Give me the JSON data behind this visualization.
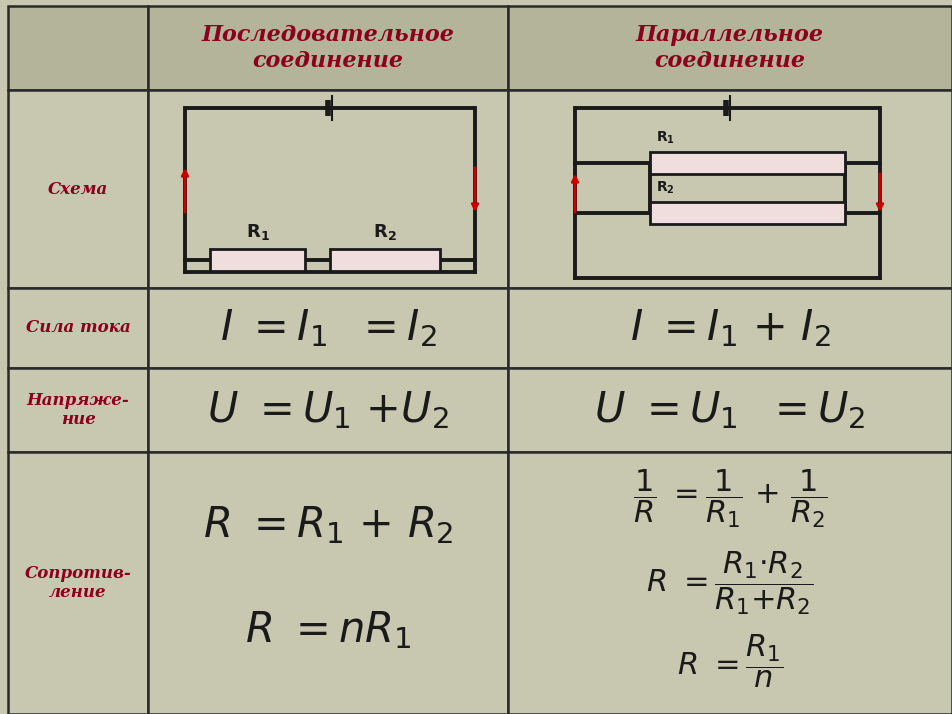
{
  "bg_color": "#c8c8b0",
  "header_bg": "#b4b49a",
  "cell_bg": "#c8c8b0",
  "border_color": "#2a2a2a",
  "red": "#8b001a",
  "black": "#1a1a1a",
  "resistor_fill": "#f0dede",
  "arrow_color": "#cc0000",
  "header1": "Последовательное\nсоединение",
  "header2": "Параллельное\nсоединение",
  "row1": "Схема",
  "row2": "Сила тока",
  "row3": "Напряже-\nние",
  "row4": "Сопротив-\nление",
  "c0": 8,
  "c1": 148,
  "c2": 508,
  "c3": 952,
  "r0": 6,
  "r1": 90,
  "r2": 288,
  "r3": 368,
  "r4": 452,
  "r5": 714,
  "figsize": [
    9.52,
    7.14
  ],
  "dpi": 100
}
